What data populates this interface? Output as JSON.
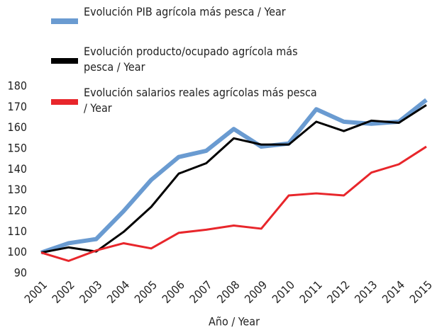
{
  "chart_data": {
    "type": "line",
    "categories": [
      "2001",
      "2002",
      "2003",
      "2004",
      "2005",
      "2006",
      "2007",
      "2008",
      "2009",
      "2010",
      "2011",
      "2012",
      "2013",
      "2014",
      "2015"
    ],
    "series": [
      {
        "name": "Evolución PIB agrícola más pesca / Year",
        "color": "#6a9bd1",
        "values": [
          100,
          104.5,
          106.5,
          120,
          135,
          146,
          149,
          159.5,
          151,
          152.5,
          169,
          163,
          162,
          163,
          173.5
        ]
      },
      {
        "name": "Evolución producto/ocupado agrícola más pesca / Year",
        "color": "#000000",
        "values": [
          100,
          102.5,
          100.5,
          110,
          122,
          138,
          143,
          155,
          152,
          152,
          163,
          158.5,
          163.5,
          162.5,
          171
        ]
      },
      {
        "name": "Evolución salarios reales agrícolas más pesca / Year",
        "color": "#e8262b",
        "values": [
          100,
          96,
          101,
          104.5,
          102,
          109.5,
          111,
          113,
          111.5,
          127.5,
          128.5,
          127.5,
          138.5,
          142.5,
          151
        ]
      }
    ],
    "xlabel": "Año / Year",
    "ylim": [
      90,
      180
    ],
    "yticks": [
      90,
      100,
      110,
      120,
      130,
      140,
      150,
      160,
      170,
      180
    ]
  }
}
